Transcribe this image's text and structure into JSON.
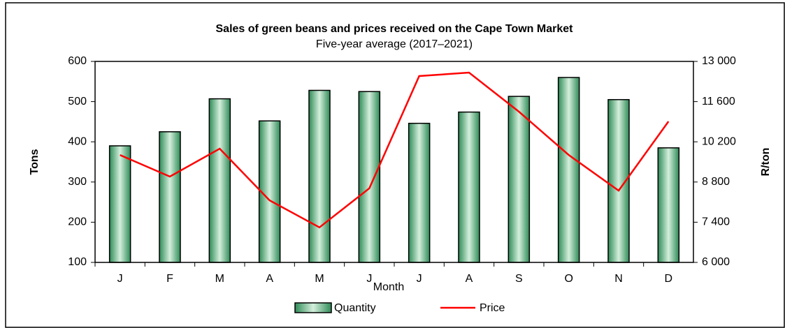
{
  "chart_data": {
    "type": "bar-line",
    "title": "Sales of green beans and prices received on the Cape Town Market",
    "subtitle": "Five-year average (2017–2021)",
    "x_label": "Month",
    "y_label": "Tons",
    "y2_label": "R/ton",
    "categories": [
      "J",
      "F",
      "M",
      "A",
      "M",
      "J",
      "J",
      "A",
      "S",
      "O",
      "N",
      "D"
    ],
    "series": [
      {
        "name": "Quantity",
        "type": "bar",
        "color": "#2e8b57",
        "values": [
          390,
          425,
          507,
          452,
          528,
          525,
          446,
          474,
          513,
          560,
          505,
          385
        ]
      },
      {
        "name": "Price",
        "type": "line",
        "axis": "y2",
        "color": "#ff0000",
        "values": [
          9740,
          8990,
          9960,
          8160,
          7220,
          8580,
          12490,
          12610,
          11250,
          9740,
          8500,
          10910
        ]
      }
    ],
    "ylim": [
      100,
      600
    ],
    "yticks": [
      100,
      200,
      300,
      400,
      500,
      600
    ],
    "y2lim": [
      6000,
      13000
    ],
    "y2ticks": [
      {
        "value": 6000,
        "label": "6 000"
      },
      {
        "value": 7400,
        "label": "7 400"
      },
      {
        "value": 8800,
        "label": "8 800"
      },
      {
        "value": 10200,
        "label": "10 200"
      },
      {
        "value": 11600,
        "label": "11 600"
      },
      {
        "value": 13000,
        "label": "13 000"
      }
    ],
    "legend": "bottom"
  }
}
